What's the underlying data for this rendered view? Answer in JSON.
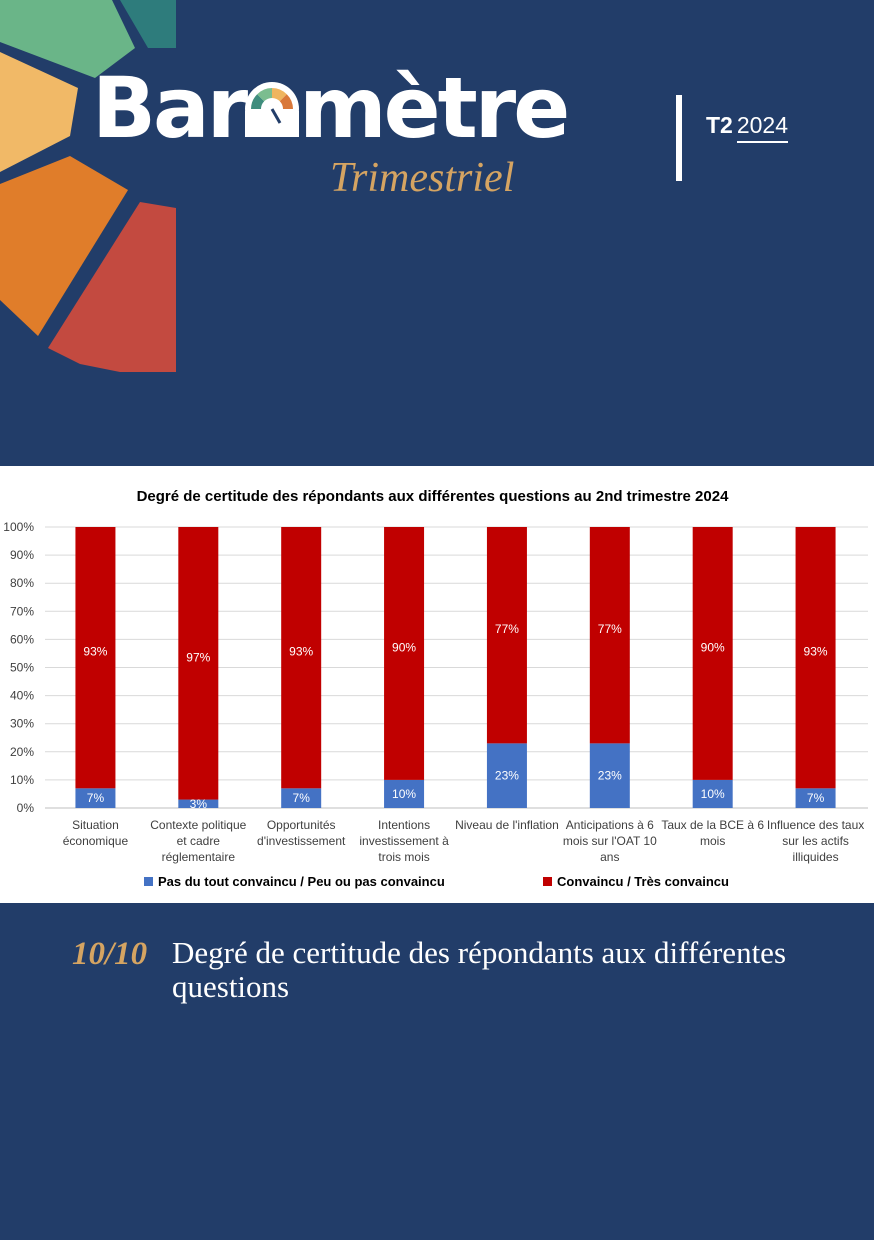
{
  "brand": {
    "title_part1": "Bar",
    "title_part2": "mètre",
    "subtitle": "Trimestriel",
    "quarter": "T2",
    "year": "2024"
  },
  "chart_data": {
    "type": "bar",
    "stacked": true,
    "title": "Degré de certitude des répondants aux différentes questions au 2nd trimestre 2024",
    "categories": [
      [
        "Situation",
        "économique"
      ],
      [
        "Contexte politique",
        "et cadre",
        "réglementaire"
      ],
      [
        "Opportunités",
        "d'investissement"
      ],
      [
        "Intentions",
        "investissement à",
        "trois mois"
      ],
      [
        "Niveau de l'inflation"
      ],
      [
        "Anticipations   à 6",
        "mois sur l'OAT 10",
        "ans"
      ],
      [
        "Taux de la BCE à 6",
        "mois"
      ],
      [
        "Influence des taux",
        "sur les actifs",
        "illiquides"
      ]
    ],
    "series": [
      {
        "name": "Pas du tout convaincu / Peu ou pas convaincu",
        "color": "#4472c4",
        "values": [
          7,
          3,
          7,
          10,
          23,
          23,
          10,
          7
        ],
        "labels": [
          "7%",
          "3%",
          "7%",
          "10%",
          "23%",
          "23%",
          "10%",
          "7%"
        ]
      },
      {
        "name": "Convaincu / Très convaincu",
        "color": "#c00000",
        "values": [
          93,
          97,
          93,
          90,
          77,
          77,
          90,
          93
        ],
        "labels": [
          "93%",
          "97%",
          "93%",
          "90%",
          "77%",
          "77%",
          "90%",
          "93%"
        ]
      }
    ],
    "ylim": [
      0,
      100
    ],
    "yticks": [
      "0%",
      "10%",
      "20%",
      "30%",
      "40%",
      "50%",
      "60%",
      "70%",
      "80%",
      "90%",
      "100%"
    ],
    "grid": true,
    "legend": "bottom"
  },
  "caption": {
    "number": "10/10",
    "text": "Degré de certitude des répondants aux différentes questions"
  }
}
